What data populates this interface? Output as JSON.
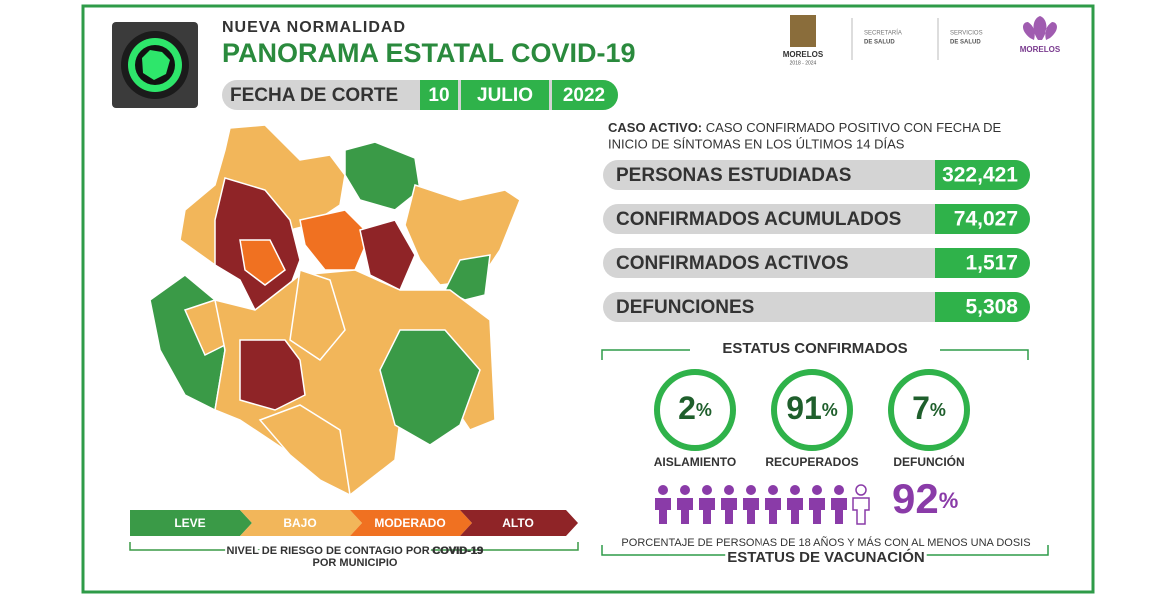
{
  "header": {
    "subtitle": "NUEVA NORMALIDAD",
    "title": "PANORAMA ESTATAL COVID-19",
    "date_label": "FECHA DE CORTE",
    "day": "10",
    "month": "JULIO",
    "year": "2022"
  },
  "logos": {
    "state": "MORELOS",
    "state_years": "2018 - 2024",
    "secretaria_1": "SECRETARÍA",
    "secretaria_2": "DE SALUD",
    "servicios_1": "SERVICIOS",
    "servicios_2": "DE SALUD",
    "brand": "MORELOS"
  },
  "definition": {
    "term": "CASO ACTIVO:",
    "line_1": "CASO CONFIRMADO POSITIVO CON FECHA DE",
    "line_2": "INICIO DE SÍNTOMAS EN LOS ÚLTIMOS 14 DÍAS"
  },
  "stats": [
    {
      "label": "PERSONAS ESTUDIADAS",
      "value": "322,421"
    },
    {
      "label": "CONFIRMADOS ACUMULADOS",
      "value": "74,027"
    },
    {
      "label": "CONFIRMADOS ACTIVOS",
      "value": "1,517"
    },
    {
      "label": "DEFUNCIONES",
      "value": "5,308"
    }
  ],
  "status": {
    "title": "ESTATUS CONFIRMADOS",
    "items": [
      {
        "value": "2",
        "unit": "%",
        "label": "AISLAMIENTO"
      },
      {
        "value": "91",
        "unit": "%",
        "label": "RECUPERADOS"
      },
      {
        "value": "7",
        "unit": "%",
        "label": "DEFUNCIÓN"
      }
    ]
  },
  "vaccination": {
    "value": "92",
    "unit": "%",
    "note": "PORCENTAJE DE PERSONAS DE 18 AÑOS Y MÁS CON AL MENOS UNA DOSIS",
    "title": "ESTATUS DE VACUNACIÓN"
  },
  "legend": {
    "levels": [
      "LEVE",
      "BAJO",
      "MODERADO",
      "ALTO"
    ],
    "caption_1": "NIVEL DE RIESGO DE CONTAGIO POR",
    "caption_bold": "COVID-19",
    "caption_2": "POR MUNICIPIO"
  }
}
